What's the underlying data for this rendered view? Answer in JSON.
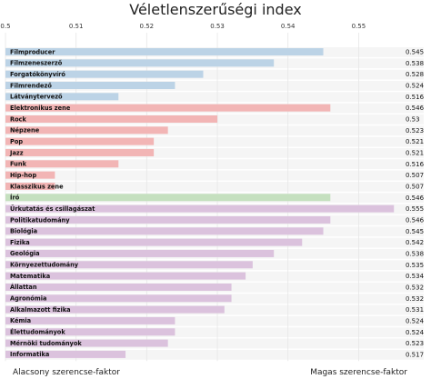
{
  "chart_data": {
    "type": "bar",
    "orientation": "horizontal",
    "title": "Véletlenszerűségi index",
    "xlim": [
      0.5,
      0.556
    ],
    "xticks": [
      "0.5",
      "0.51",
      "0.52",
      "0.53",
      "0.54",
      "0.55"
    ],
    "grid": true,
    "bars": [
      {
        "label": "Filmproducer",
        "value": 0.545,
        "value_label": "0.545",
        "color": "#bcd3e6"
      },
      {
        "label": "Filmzeneszerző",
        "value": 0.538,
        "value_label": "0.538",
        "color": "#bcd3e6"
      },
      {
        "label": "Forgatókönyvíró",
        "value": 0.528,
        "value_label": "0.528",
        "color": "#bcd3e6"
      },
      {
        "label": "Filmrendező",
        "value": 0.524,
        "value_label": "0.524",
        "color": "#bcd3e6"
      },
      {
        "label": "Látványtervező",
        "value": 0.516,
        "value_label": "0.516",
        "color": "#bcd3e6"
      },
      {
        "label": "Elektronikus zene",
        "value": 0.546,
        "value_label": "0.546",
        "color": "#f2b5b5"
      },
      {
        "label": "Rock",
        "value": 0.53,
        "value_label": "0.53",
        "color": "#f2b5b5"
      },
      {
        "label": "Népzene",
        "value": 0.523,
        "value_label": "0.523",
        "color": "#f2b5b5"
      },
      {
        "label": "Pop",
        "value": 0.521,
        "value_label": "0.521",
        "color": "#f2b5b5"
      },
      {
        "label": "Jazz",
        "value": 0.521,
        "value_label": "0.521",
        "color": "#f2b5b5"
      },
      {
        "label": "Funk",
        "value": 0.516,
        "value_label": "0.516",
        "color": "#f2b5b5"
      },
      {
        "label": "Hip-hop",
        "value": 0.507,
        "value_label": "0.507",
        "color": "#f2b5b5"
      },
      {
        "label": "Klasszikus zene",
        "value": 0.507,
        "value_label": "0.507",
        "color": "#f2b5b5"
      },
      {
        "label": "Író",
        "value": 0.546,
        "value_label": "0.546",
        "color": "#c5e0bf"
      },
      {
        "label": "Űrkutatás és csillagászat",
        "value": 0.555,
        "value_label": "0.555",
        "color": "#dbc2dd"
      },
      {
        "label": "Politikatudomány",
        "value": 0.546,
        "value_label": "0.546",
        "color": "#dbc2dd"
      },
      {
        "label": "Biológia",
        "value": 0.545,
        "value_label": "0.545",
        "color": "#dbc2dd"
      },
      {
        "label": "Fizika",
        "value": 0.542,
        "value_label": "0.542",
        "color": "#dbc2dd"
      },
      {
        "label": "Geológia",
        "value": 0.538,
        "value_label": "0.538",
        "color": "#dbc2dd"
      },
      {
        "label": "Környezettudomány",
        "value": 0.535,
        "value_label": "0.535",
        "color": "#dbc2dd"
      },
      {
        "label": "Matematika",
        "value": 0.534,
        "value_label": "0.534",
        "color": "#dbc2dd"
      },
      {
        "label": "Állattan",
        "value": 0.532,
        "value_label": "0.532",
        "color": "#dbc2dd"
      },
      {
        "label": "Agronómia",
        "value": 0.532,
        "value_label": "0.532",
        "color": "#dbc2dd"
      },
      {
        "label": "Alkalmazott fizika",
        "value": 0.531,
        "value_label": "0.531",
        "color": "#dbc2dd"
      },
      {
        "label": "Kémia",
        "value": 0.524,
        "value_label": "0.524",
        "color": "#dbc2dd"
      },
      {
        "label": "Élettudományok",
        "value": 0.524,
        "value_label": "0.524",
        "color": "#dbc2dd"
      },
      {
        "label": "Mérnöki tudományok",
        "value": 0.523,
        "value_label": "0.523",
        "color": "#dbc2dd"
      },
      {
        "label": "Informatika",
        "value": 0.517,
        "value_label": "0.517",
        "color": "#dbc2dd"
      }
    ],
    "footer_left": "Alacsony szerencse-faktor",
    "footer_right": "Magas szerencse-faktor"
  }
}
